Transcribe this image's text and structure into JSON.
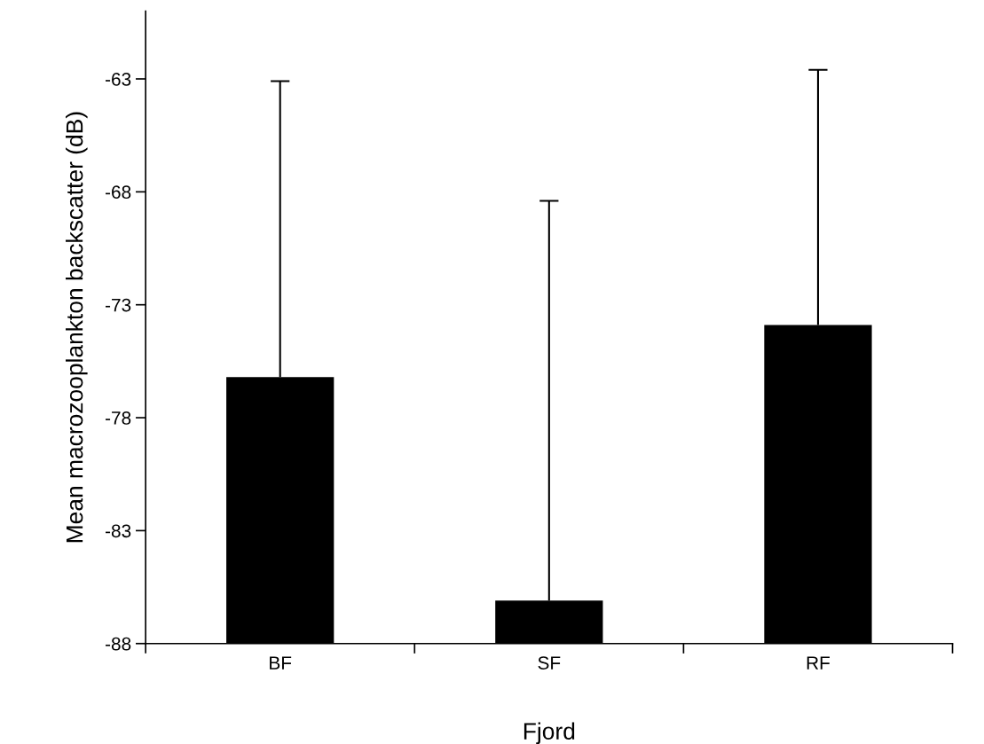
{
  "chart_data": {
    "type": "bar",
    "xlabel": "Fjord",
    "ylabel": "Mean macrozooplankton backscatter (dB)",
    "categories": [
      "BF",
      "SF",
      "RF"
    ],
    "base": [
      -88,
      -88,
      -88
    ],
    "values": [
      11.8,
      1.9,
      14.1
    ],
    "errors": [
      [
        -76.2,
        -63.1
      ],
      [
        -86.1,
        -68.4
      ],
      [
        -73.9,
        -62.6
      ]
    ],
    "color": "#000000",
    "ylim": [
      -88,
      -60
    ],
    "yticks": [
      -88,
      -83,
      -78,
      -73,
      -68,
      -63
    ],
    "grid": false
  }
}
